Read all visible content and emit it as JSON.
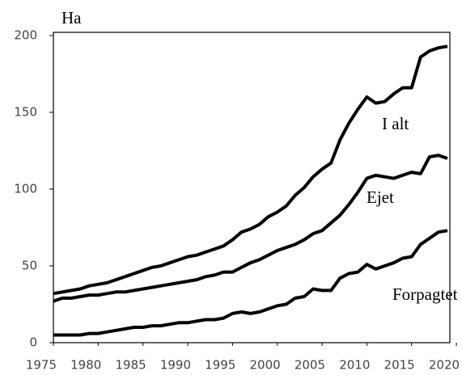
{
  "chart_data": {
    "type": "line",
    "y_label": "Ha",
    "x": [
      1975,
      1976,
      1977,
      1978,
      1979,
      1980,
      1981,
      1982,
      1983,
      1984,
      1985,
      1986,
      1987,
      1988,
      1989,
      1990,
      1991,
      1992,
      1993,
      1994,
      1995,
      1996,
      1997,
      1998,
      1999,
      2000,
      2001,
      2002,
      2003,
      2004,
      2005,
      2006,
      2007,
      2008,
      2009,
      2010,
      2011,
      2012,
      2013,
      2014,
      2015,
      2016,
      2017,
      2018,
      2019
    ],
    "series": [
      {
        "name": "I alt",
        "color": "#000000",
        "values": [
          32,
          33,
          34,
          35,
          37,
          38,
          39,
          41,
          43,
          45,
          47,
          49,
          50,
          52,
          54,
          56,
          57,
          59,
          61,
          63,
          67,
          72,
          74,
          77,
          82,
          85,
          89,
          96,
          101,
          108,
          113,
          117,
          132,
          143,
          152,
          160,
          156,
          157,
          162,
          166,
          166,
          186,
          190,
          192,
          193
        ]
      },
      {
        "name": "Ejet",
        "color": "#000000",
        "values": [
          27,
          29,
          29,
          30,
          31,
          31,
          32,
          33,
          33,
          34,
          35,
          36,
          37,
          38,
          39,
          40,
          41,
          43,
          44,
          46,
          46,
          49,
          52,
          54,
          57,
          60,
          62,
          64,
          67,
          71,
          73,
          78,
          83,
          90,
          98,
          107,
          109,
          108,
          107,
          109,
          111,
          110,
          121,
          122,
          120
        ]
      },
      {
        "name": "Forpagtet",
        "color": "#000000",
        "values": [
          5,
          5,
          5,
          5,
          6,
          6,
          7,
          8,
          9,
          10,
          10,
          11,
          11,
          12,
          13,
          13,
          14,
          15,
          15,
          16,
          19,
          20,
          19,
          20,
          22,
          24,
          25,
          29,
          30,
          35,
          34,
          34,
          42,
          45,
          46,
          51,
          48,
          50,
          52,
          55,
          56,
          64,
          68,
          72,
          73
        ]
      }
    ],
    "xlim": [
      1975,
      2019
    ],
    "xticks": [
      1975,
      1980,
      1985,
      1990,
      1995,
      2000,
      2005,
      2010,
      2015,
      2020
    ],
    "ylim": [
      0,
      200
    ],
    "yticks": [
      0,
      50,
      100,
      150,
      200
    ]
  }
}
